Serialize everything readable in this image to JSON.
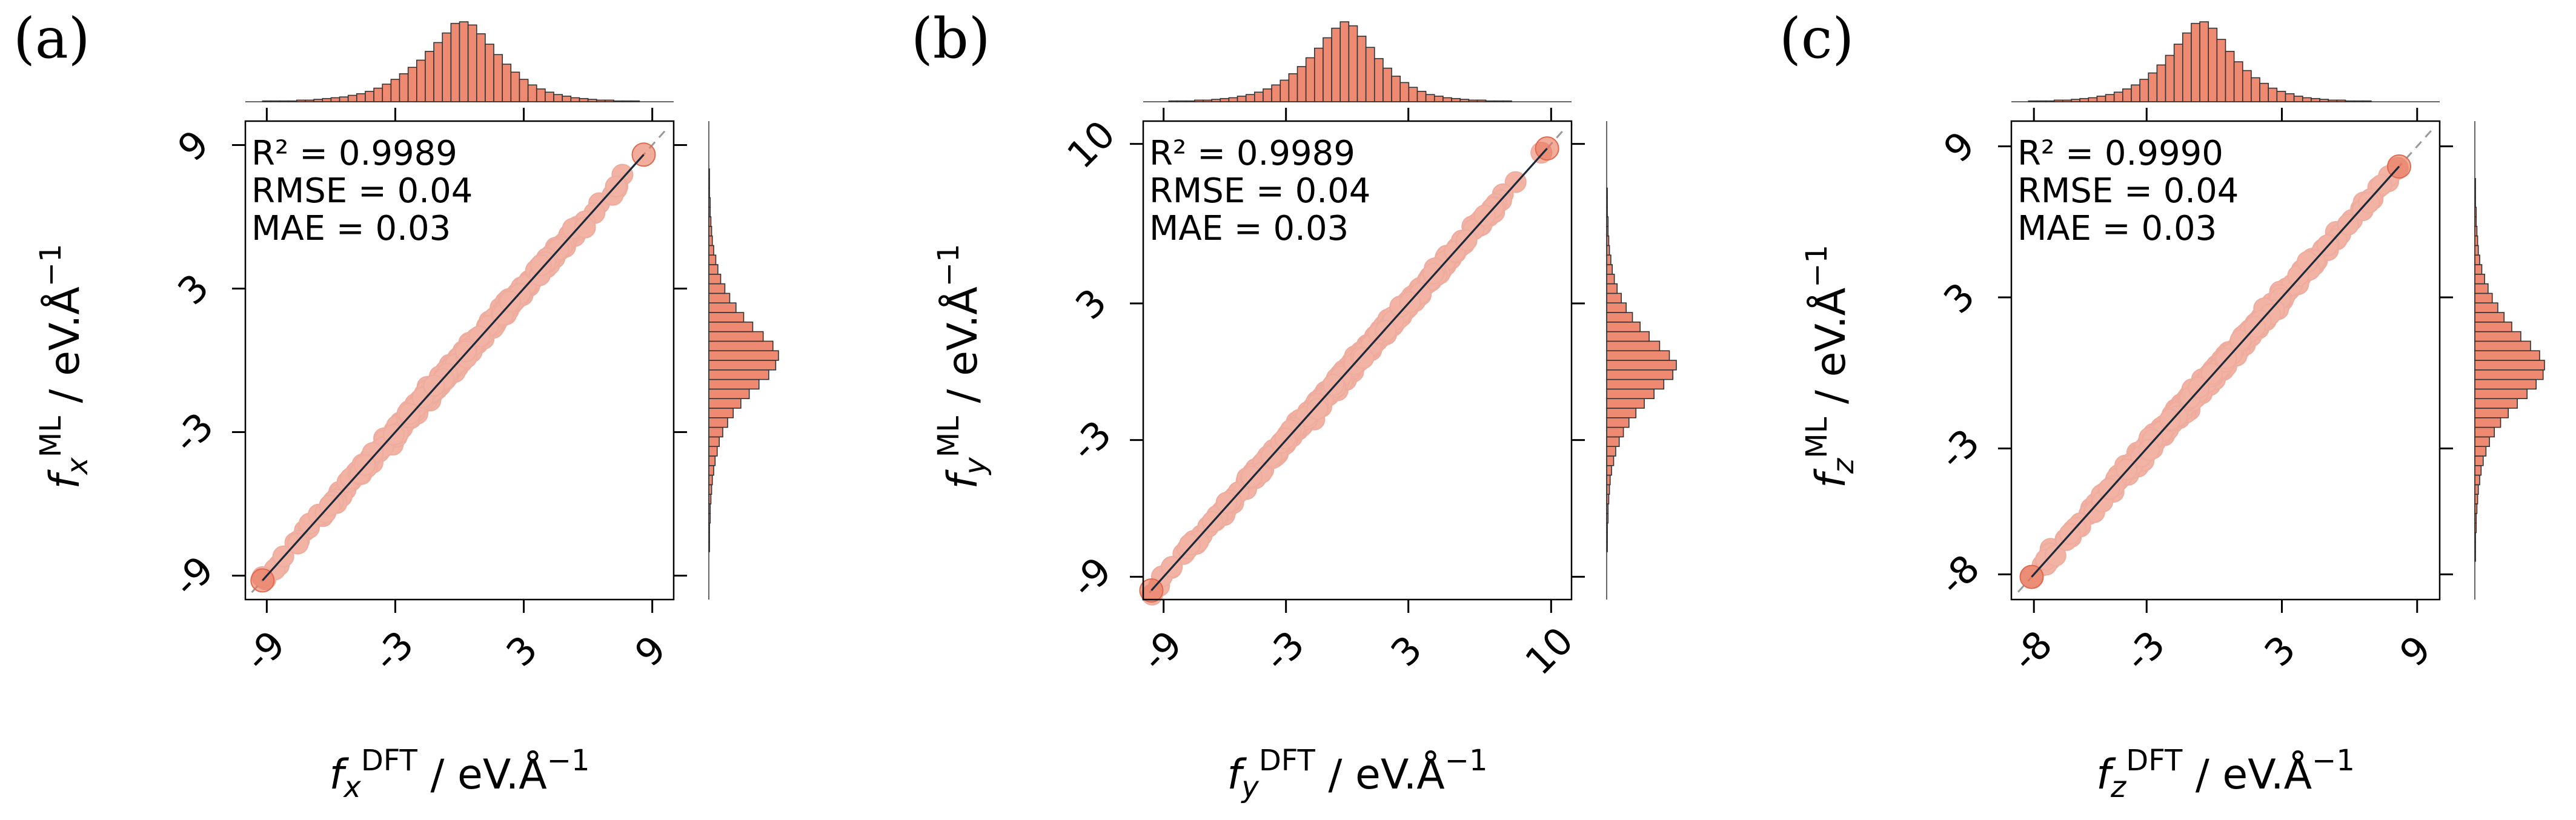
{
  "chart_data": [
    {
      "panel_label": "(a)",
      "type": "scatter",
      "stats": [
        "R² = 0.9989",
        "RMSE = 0.04",
        "MAE = 0.03"
      ],
      "xlabel": {
        "var": "f",
        "sub": "x",
        "sup": "DFT",
        "unit": " / eV.Å",
        "unit_sup": "−1"
      },
      "ylabel": {
        "var": "f",
        "sub": "x",
        "sup": "ML",
        "unit": " / eV.Å",
        "unit_sup": "−1"
      },
      "xlim": [
        -10,
        10
      ],
      "ylim": [
        -10,
        10
      ],
      "xticks": [
        -9,
        -3,
        3,
        9
      ],
      "yticks": [
        -9,
        -3,
        3,
        9
      ],
      "xtick_labels": [
        "-9",
        "-3",
        "3",
        "9"
      ],
      "ytick_labels": [
        "-9",
        "-3",
        "3",
        "9"
      ],
      "diagonal_line": true,
      "fit_line": true,
      "points_range": [
        -9.2,
        8.6
      ],
      "top_hist": {
        "range": [
          -10,
          10
        ],
        "counts": [
          0,
          0,
          1,
          1,
          1,
          1,
          2,
          2,
          3,
          4,
          5,
          6,
          8,
          10,
          13,
          17,
          22,
          28,
          35,
          43,
          52,
          63,
          74,
          86,
          98,
          100,
          96,
          85,
          72,
          59,
          47,
          37,
          28,
          21,
          16,
          12,
          9,
          7,
          5,
          4,
          3,
          2,
          2,
          1,
          1,
          1,
          0,
          0,
          0,
          0
        ]
      },
      "right_hist": {
        "range": [
          -10,
          10
        ],
        "counts": [
          0,
          0,
          0,
          0,
          0,
          1,
          1,
          1,
          2,
          2,
          3,
          4,
          5,
          7,
          9,
          12,
          15,
          20,
          27,
          35,
          46,
          58,
          72,
          86,
          96,
          100,
          92,
          78,
          63,
          50,
          39,
          30,
          23,
          17,
          13,
          10,
          7,
          5,
          4,
          3,
          2,
          2,
          1,
          1,
          1,
          0,
          0,
          0,
          0,
          0
        ]
      }
    },
    {
      "panel_label": "(b)",
      "type": "scatter",
      "stats": [
        "R² = 0.9989",
        "RMSE = 0.04",
        "MAE = 0.03"
      ],
      "xlabel": {
        "var": "f",
        "sub": "y",
        "sup": "DFT",
        "unit": " / eV.Å",
        "unit_sup": "−1"
      },
      "ylabel": {
        "var": "f",
        "sub": "y",
        "sup": "ML",
        "unit": " / eV.Å",
        "unit_sup": "−1"
      },
      "xlim": [
        -10,
        11
      ],
      "ylim": [
        -10,
        11
      ],
      "xticks": [
        -9,
        -3,
        3,
        10
      ],
      "yticks": [
        -9,
        -3,
        3,
        10
      ],
      "xtick_labels": [
        "-9",
        "-3",
        "3",
        "10"
      ],
      "ytick_labels": [
        "-9",
        "-3",
        "3",
        "10"
      ],
      "diagonal_line": true,
      "fit_line": true,
      "points_range": [
        -9.6,
        9.8
      ],
      "top_hist": {
        "range": [
          -10,
          11
        ],
        "counts": [
          0,
          0,
          0,
          1,
          1,
          1,
          2,
          2,
          3,
          4,
          5,
          7,
          9,
          12,
          16,
          21,
          27,
          35,
          44,
          55,
          67,
          80,
          92,
          100,
          95,
          82,
          68,
          54,
          42,
          32,
          24,
          18,
          13,
          9,
          7,
          5,
          4,
          3,
          2,
          2,
          1,
          1,
          1,
          0,
          0,
          0,
          0,
          0,
          0,
          0
        ]
      },
      "right_hist": {
        "range": [
          -10,
          11
        ],
        "counts": [
          0,
          0,
          0,
          0,
          0,
          1,
          1,
          1,
          2,
          2,
          3,
          4,
          5,
          7,
          10,
          13,
          18,
          24,
          32,
          42,
          54,
          68,
          82,
          95,
          100,
          90,
          76,
          61,
          48,
          37,
          28,
          21,
          15,
          11,
          8,
          6,
          4,
          3,
          2,
          2,
          1,
          1,
          1,
          0,
          0,
          0,
          0,
          0,
          0,
          0
        ]
      }
    },
    {
      "panel_label": "(c)",
      "type": "scatter",
      "stats": [
        "R² = 0.9990",
        "RMSE = 0.04",
        "MAE = 0.03"
      ],
      "xlabel": {
        "var": "f",
        "sub": "z",
        "sup": "DFT",
        "unit": " / eV.Å",
        "unit_sup": "−1"
      },
      "ylabel": {
        "var": "f",
        "sub": "z",
        "sup": "ML",
        "unit": " / eV.Å",
        "unit_sup": "−1"
      },
      "xlim": [
        -9,
        10
      ],
      "ylim": [
        -9,
        10
      ],
      "xticks": [
        -8,
        -3,
        3,
        9
      ],
      "yticks": [
        -8,
        -3,
        3,
        9
      ],
      "xtick_labels": [
        "-8",
        "-3",
        "3",
        "9"
      ],
      "ytick_labels": [
        "-8",
        "-3",
        "3",
        "9"
      ],
      "diagonal_line": true,
      "fit_line": true,
      "points_range": [
        -8.1,
        8.2
      ],
      "top_hist": {
        "range": [
          -9,
          10
        ],
        "counts": [
          0,
          0,
          1,
          1,
          1,
          2,
          2,
          3,
          4,
          5,
          7,
          9,
          12,
          16,
          21,
          28,
          36,
          46,
          58,
          72,
          86,
          98,
          100,
          92,
          78,
          63,
          50,
          39,
          30,
          23,
          17,
          13,
          10,
          7,
          5,
          4,
          3,
          2,
          2,
          1,
          1,
          1,
          0,
          0,
          0,
          0,
          0,
          0,
          0,
          0
        ]
      },
      "right_hist": {
        "range": [
          -9,
          10
        ],
        "counts": [
          0,
          0,
          0,
          0,
          1,
          1,
          1,
          2,
          2,
          3,
          4,
          5,
          7,
          9,
          12,
          16,
          21,
          28,
          37,
          48,
          61,
          75,
          88,
          98,
          100,
          93,
          80,
          66,
          53,
          42,
          33,
          25,
          19,
          14,
          10,
          7,
          5,
          4,
          3,
          2,
          2,
          1,
          1,
          1,
          0,
          0,
          0,
          0,
          0,
          0
        ]
      }
    }
  ],
  "colors": {
    "marker": "#e8755a",
    "marker_edge": "#e06a4f",
    "hist_fill": "#ee8a72",
    "hist_edge": "#333333",
    "fit_line": "#1a2a3a",
    "diagonal": "#999999",
    "axis": "#000000"
  }
}
